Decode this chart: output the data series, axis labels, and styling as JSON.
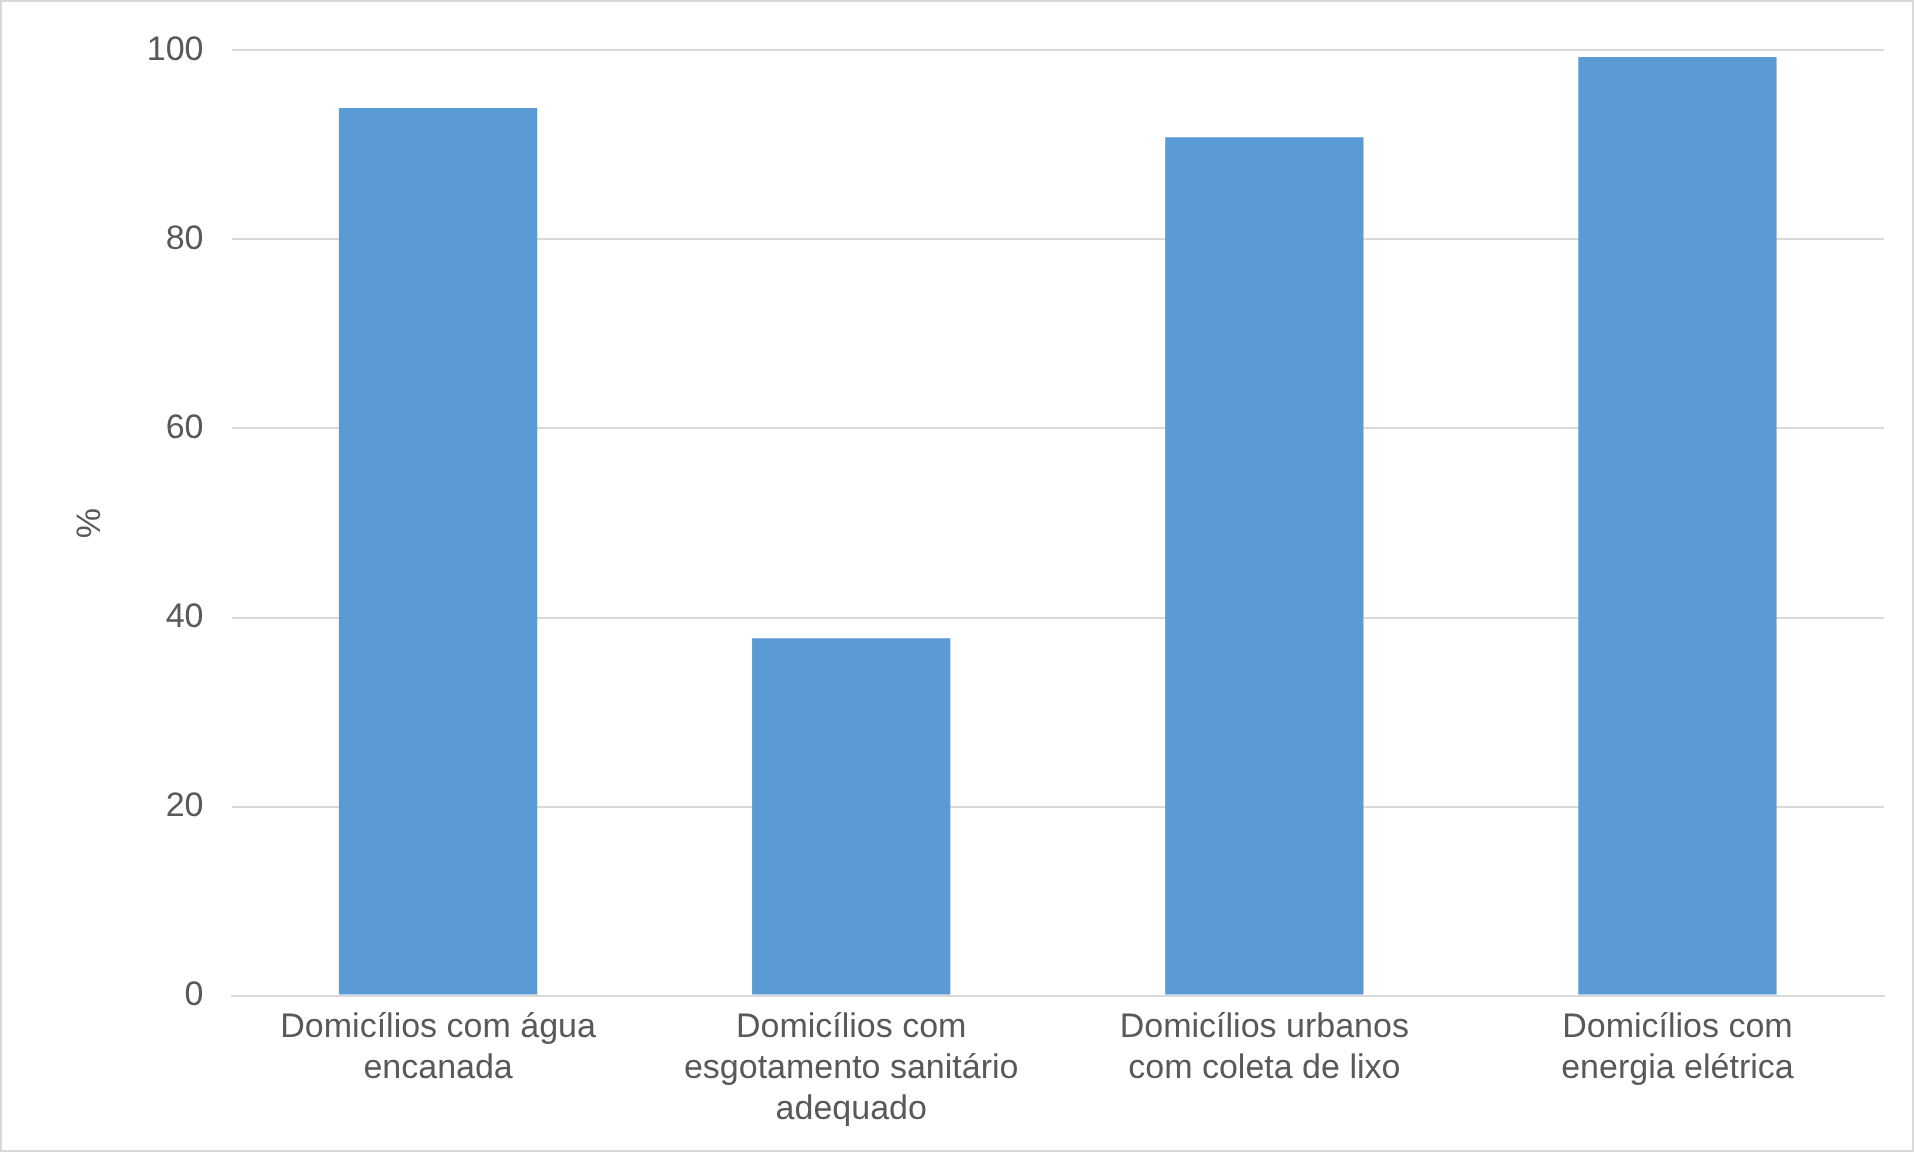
{
  "chart_data": {
    "type": "bar",
    "ylabel": "%",
    "categories": [
      "Domicílios com água encanada",
      "Domicílios com esgotamento sanitário adequado",
      "Domicílios urbanos com coleta de lixo",
      "Domicílios com energia elétrica"
    ],
    "values": [
      93.9,
      37.8,
      90.8,
      99.3
    ],
    "color": "#5b9bd5",
    "ylim": [
      0,
      100
    ],
    "yticks": [
      0,
      20,
      40,
      60,
      80,
      100
    ],
    "grid": "y",
    "legend": false
  }
}
